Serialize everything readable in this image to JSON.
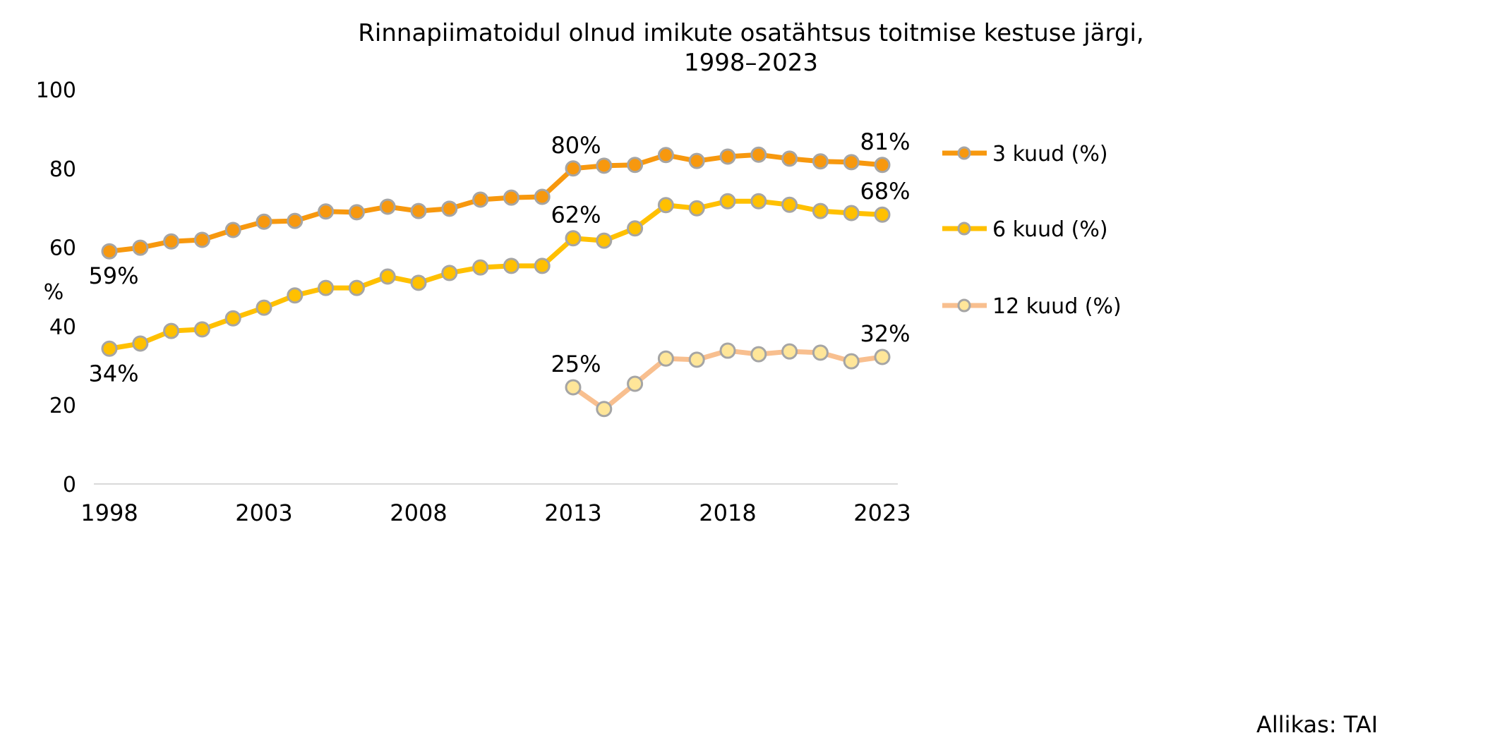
{
  "chart_data": {
    "type": "line",
    "title": "Rinnapiimatoidul olnud imikute osatähtsus toitmise kestuse järgi,",
    "subtitle": "1998–2023",
    "xlabel": "",
    "ylabel": "%",
    "ylim": [
      0,
      100
    ],
    "yticks": [
      "0",
      "20",
      "40",
      "60",
      "80",
      "100"
    ],
    "xticks": [
      "1998",
      "2003",
      "2008",
      "2013",
      "2018",
      "2023"
    ],
    "grid": false,
    "legend_position": "right",
    "source": "Allikas: TAI",
    "x": [
      1998,
      1999,
      2000,
      2001,
      2002,
      2003,
      2004,
      2005,
      2006,
      2007,
      2008,
      2009,
      2010,
      2011,
      2012,
      2013,
      2014,
      2015,
      2016,
      2017,
      2018,
      2019,
      2020,
      2021,
      2022,
      2023
    ],
    "series": [
      {
        "name": "3 kuud (%)",
        "color": "#F7980E",
        "marker_fill": "#F7980E",
        "values": [
          59.0,
          59.9,
          61.5,
          61.9,
          64.4,
          66.5,
          66.7,
          69.1,
          68.9,
          70.3,
          69.2,
          69.8,
          72.1,
          72.6,
          72.8,
          80.0,
          80.7,
          80.9,
          83.4,
          81.9,
          83.0,
          83.5,
          82.5,
          81.8,
          81.6,
          80.9
        ],
        "labels": [
          {
            "year": 1998,
            "text": "59%",
            "pos": "below"
          },
          {
            "year": 2013,
            "text": "80%",
            "pos": "above"
          },
          {
            "year": 2023,
            "text": "81%",
            "pos": "above"
          }
        ]
      },
      {
        "name": "6 kuud (%)",
        "color": "#FFC000",
        "marker_fill": "#FFC000",
        "values": [
          34.3,
          35.6,
          38.8,
          39.2,
          42.0,
          44.7,
          47.8,
          49.7,
          49.7,
          52.6,
          51.0,
          53.5,
          54.9,
          55.3,
          55.3,
          62.3,
          61.7,
          64.8,
          70.7,
          69.9,
          71.7,
          71.7,
          70.8,
          69.2,
          68.7,
          68.3
        ],
        "labels": [
          {
            "year": 1998,
            "text": "34%",
            "pos": "below"
          },
          {
            "year": 2013,
            "text": "62%",
            "pos": "above"
          },
          {
            "year": 2023,
            "text": "68%",
            "pos": "above"
          }
        ]
      },
      {
        "name": "12 kuud (%)",
        "color": "#F8BF8F",
        "marker_fill": "#FFE699",
        "values": [
          null,
          null,
          null,
          null,
          null,
          null,
          null,
          null,
          null,
          null,
          null,
          null,
          null,
          null,
          null,
          24.5,
          19.0,
          25.4,
          31.8,
          31.5,
          33.8,
          32.9,
          33.6,
          33.3,
          31.1,
          32.2
        ],
        "labels": [
          {
            "year": 2013,
            "text": "25%",
            "pos": "above"
          },
          {
            "year": 2023,
            "text": "32%",
            "pos": "above"
          }
        ]
      }
    ],
    "marker_stroke": "#A5A5A5",
    "axis_color": "#D9D9D9"
  }
}
